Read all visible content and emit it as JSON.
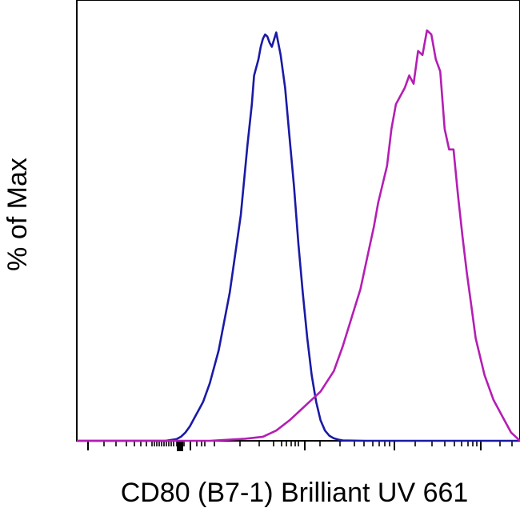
{
  "chart_data": {
    "type": "line",
    "title": "",
    "xlabel": "CD80 (B7-1) Brilliant UV 661",
    "ylabel": "% of Max",
    "x_scale": "log",
    "xlim": [
      0,
      1
    ],
    "ylim": [
      0,
      100
    ],
    "grid": false,
    "legend": "none",
    "series": [
      {
        "color": "#1a1aa6",
        "x": [
          0.0,
          0.15,
          0.2,
          0.225,
          0.235,
          0.245,
          0.255,
          0.265,
          0.275,
          0.285,
          0.3,
          0.32,
          0.345,
          0.37,
          0.385,
          0.395,
          0.4,
          0.41,
          0.415,
          0.42,
          0.425,
          0.43,
          0.435,
          0.44,
          0.45,
          0.46,
          0.47,
          0.48,
          0.49,
          0.5,
          0.51,
          0.52,
          0.53,
          0.54,
          0.55,
          0.56,
          0.57,
          0.58,
          0.59,
          0.6,
          0.65,
          1.0
        ],
        "y": [
          0,
          0,
          0,
          0.4,
          1.0,
          2.0,
          3.5,
          5.5,
          7.5,
          9.5,
          14,
          22,
          36,
          55,
          72,
          82,
          89,
          93,
          96,
          98,
          99,
          98.5,
          97,
          96,
          99.5,
          94,
          86,
          74,
          62,
          48,
          36,
          25,
          16,
          9.5,
          5,
          2.5,
          1.2,
          0.6,
          0.3,
          0.1,
          0,
          0
        ]
      },
      {
        "color": "#b41eb4",
        "x": [
          0.0,
          0.3,
          0.38,
          0.42,
          0.45,
          0.48,
          0.51,
          0.55,
          0.58,
          0.6,
          0.62,
          0.64,
          0.65,
          0.66,
          0.67,
          0.68,
          0.7,
          0.71,
          0.72,
          0.73,
          0.74,
          0.75,
          0.76,
          0.77,
          0.78,
          0.79,
          0.8,
          0.81,
          0.82,
          0.83,
          0.84,
          0.85,
          0.86,
          0.87,
          0.88,
          0.89,
          0.9,
          0.92,
          0.94,
          0.96,
          0.98,
          1.0
        ],
        "y": [
          0,
          0,
          0.5,
          1.0,
          2.5,
          5,
          8,
          12,
          17,
          23,
          30,
          37,
          42,
          47,
          52,
          58,
          67,
          76,
          82,
          84,
          86,
          89,
          87,
          95,
          94,
          100,
          99,
          93,
          90,
          76,
          71,
          71,
          60,
          50,
          41,
          33,
          25,
          16,
          10,
          6,
          2,
          0
        ]
      }
    ]
  }
}
